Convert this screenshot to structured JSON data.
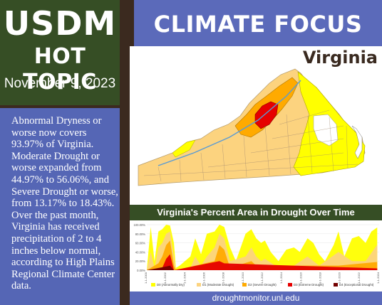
{
  "header": {
    "brand": "USDM",
    "topic": "HOT TOPIC",
    "date": "November 9, 2023",
    "banner": "CLIMATE FOCUS",
    "state": "Virginia"
  },
  "summary": "Abnormal Dryness or worse now covers 93.97% of Virginia. Moderate Drought or worse expanded from 44.97% to 56.06%, and Severe Drought or worse, from 13.17% to 18.43%. Over the past month, Virginia has received precipitation of 2 to 4 inches below normal, according to High Plains Regional Climate Center data.",
  "colors": {
    "green": "#364e25",
    "blue": "#5b6aba",
    "d0": "#ffff00",
    "d1": "#fcd37f",
    "d2": "#ffaa00",
    "d3": "#e60000",
    "d4": "#730000"
  },
  "chart_data": {
    "type": "area",
    "title": "Virginia's Percent Area in Drought Over Time",
    "yticks": [
      "100.00%",
      "80.00%",
      "60.00%",
      "40.00%",
      "20.00%",
      "0.00%"
    ],
    "ylim": [
      0,
      100
    ],
    "xlim": [
      2000,
      2024
    ],
    "xticks": [
      "1-1-2000",
      "1-1-2002",
      "1-1-2004",
      "1-1-2006",
      "1-1-2008",
      "1-1-2010",
      "1-1-2012",
      "1-1-2014",
      "1-1-2016",
      "1-1-2018",
      "1-1-2020",
      "1-1-2022",
      "1-1-2024"
    ],
    "legend": [
      {
        "label": "D0 (Abnormally Dry)",
        "color": "#ffff00"
      },
      {
        "label": "D1 (Moderate Drought)",
        "color": "#fcd37f"
      },
      {
        "label": "D2 (Severe Drought)",
        "color": "#ffaa00"
      },
      {
        "label": "D3 (Extreme Drought)",
        "color": "#e60000"
      },
      {
        "label": "D4 (Exceptional Drought)",
        "color": "#730000"
      }
    ],
    "series": [
      {
        "name": "D0 (Abnormally Dry)",
        "x": [
          2000,
          2000.4,
          2000.8,
          2001.2,
          2001.6,
          2002,
          2002.4,
          2002.8,
          2003,
          2003.4,
          2004.5,
          2005,
          2005.6,
          2006.2,
          2007,
          2007.5,
          2008,
          2008.6,
          2009.2,
          2010.2,
          2010.8,
          2011.3,
          2011.8,
          2012.2,
          2012.8,
          2013.6,
          2014.4,
          2015.2,
          2015.8,
          2016.6,
          2017.2,
          2017.8,
          2018.4,
          2019.3,
          2019.8,
          2020.4,
          2021.2,
          2021.9,
          2022.6,
          2023.2,
          2023.8
        ],
        "y": [
          0,
          95,
          20,
          85,
          90,
          100,
          98,
          60,
          5,
          10,
          30,
          70,
          35,
          80,
          85,
          100,
          95,
          50,
          20,
          80,
          90,
          70,
          60,
          65,
          40,
          20,
          45,
          50,
          40,
          70,
          60,
          35,
          20,
          55,
          85,
          30,
          70,
          75,
          60,
          85,
          94
        ]
      },
      {
        "name": "D1 (Moderate Drought)",
        "x": [
          2000,
          2000.4,
          2000.8,
          2001.2,
          2001.6,
          2002,
          2002.4,
          2002.8,
          2003,
          2004.5,
          2005,
          2005.6,
          2006.2,
          2007,
          2007.5,
          2008,
          2008.6,
          2010.2,
          2010.8,
          2011.3,
          2011.8,
          2012.2,
          2013.6,
          2015.2,
          2016.6,
          2017.8,
          2019.8,
          2021.2,
          2022.6,
          2023.8
        ],
        "y": [
          0,
          40,
          5,
          50,
          60,
          80,
          85,
          30,
          0,
          5,
          30,
          10,
          30,
          50,
          80,
          70,
          20,
          30,
          50,
          30,
          20,
          25,
          5,
          10,
          30,
          10,
          40,
          20,
          20,
          56
        ]
      },
      {
        "name": "D2 (Severe Drought)",
        "x": [
          2000,
          2001.2,
          2001.6,
          2002,
          2002.4,
          2002.8,
          2003,
          2007,
          2007.5,
          2008,
          2008.6,
          2010.8,
          2011.3,
          2019.8,
          2023.8
        ],
        "y": [
          0,
          15,
          30,
          55,
          65,
          10,
          0,
          20,
          55,
          45,
          5,
          20,
          10,
          10,
          18
        ]
      },
      {
        "name": "D3 (Extreme Drought)",
        "x": [
          2000,
          2001.6,
          2002,
          2002.4,
          2002.8,
          2007.5,
          2008,
          2023.8
        ],
        "y": [
          0,
          5,
          25,
          35,
          0,
          20,
          15,
          4
        ]
      },
      {
        "name": "D4 (Exceptional Drought)",
        "x": [
          2000,
          2002,
          2002.4,
          2002.8,
          2024
        ],
        "y": [
          0,
          8,
          10,
          0,
          0
        ]
      }
    ]
  },
  "footer": "droughtmonitor.unl.edu"
}
